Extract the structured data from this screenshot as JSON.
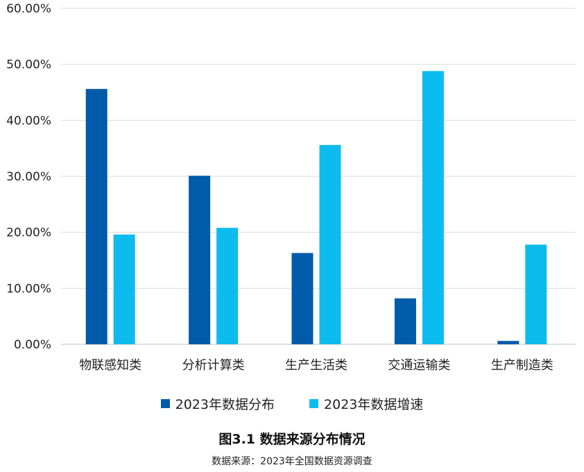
{
  "chart_data": {
    "type": "bar",
    "categories": [
      "物联感知类",
      "分析计算类",
      "生产生活类",
      "交通运输类",
      "生产制造类"
    ],
    "series": [
      {
        "name": "2023年数据分布",
        "values": [
          45.6,
          30.1,
          16.3,
          8.2,
          0.6
        ],
        "color": "#005BAA"
      },
      {
        "name": "2023年数据增速",
        "values": [
          19.6,
          20.8,
          35.6,
          48.8,
          17.8
        ],
        "color": "#0DBCEF"
      }
    ],
    "yticks": [
      "0.00%",
      "10.00%",
      "20.00%",
      "30.00%",
      "40.00%",
      "50.00%",
      "60.00%"
    ],
    "ylim": [
      0,
      60
    ],
    "grid": true,
    "legend_position": "bottom"
  },
  "caption": "图3.1  数据来源分布情况",
  "source": "数据来源：2023年全国数据资源调查"
}
